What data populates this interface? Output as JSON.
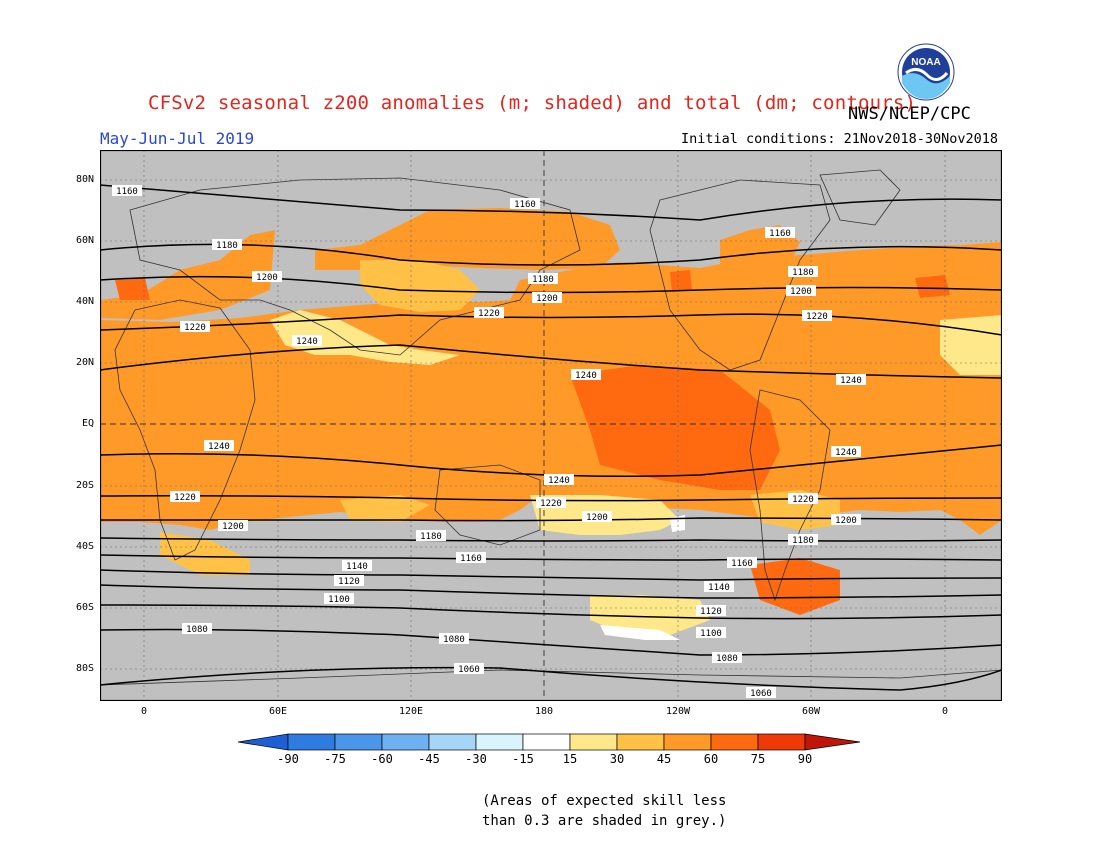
{
  "header": {
    "title": "CFSv2 seasonal z200 anomalies (m; shaded) and total (dm; contours)",
    "agency": "NWS/NCEP/CPC",
    "period": "May-Jun-Jul 2019",
    "initial_conditions": "Initial conditions: 21Nov2018-30Nov2018",
    "logo_text": "NOAA"
  },
  "map": {
    "lat_labels": [
      "80N",
      "60N",
      "40N",
      "20N",
      "EQ",
      "20S",
      "40S",
      "60S",
      "80S"
    ],
    "lon_labels": [
      "0",
      "60E",
      "120E",
      "180",
      "120W",
      "60W",
      "0"
    ],
    "contour_labels": [
      "1060",
      "1080",
      "1100",
      "1120",
      "1140",
      "1160",
      "1180",
      "1200",
      "1220",
      "1240"
    ],
    "colors": {
      "skill_grey": "#c0c0c0",
      "land_outline": "#333333",
      "contour": "#000000"
    }
  },
  "colorbar": {
    "labels": [
      "-90",
      "-75",
      "-60",
      "-45",
      "-30",
      "-15",
      "15",
      "30",
      "45",
      "60",
      "75",
      "90"
    ],
    "colors": [
      "#1e5fd6",
      "#2f7ce0",
      "#4a96e8",
      "#6fb0f0",
      "#a6d5f8",
      "#d9f4fc",
      "#ffffff",
      "#ffe88a",
      "#ffc247",
      "#ff9a28",
      "#ff6a10",
      "#ef3a08",
      "#c0160a"
    ]
  },
  "note": {
    "line1": "(Areas of expected skill less",
    "line2": "than 0.3 are shaded in grey.)"
  }
}
